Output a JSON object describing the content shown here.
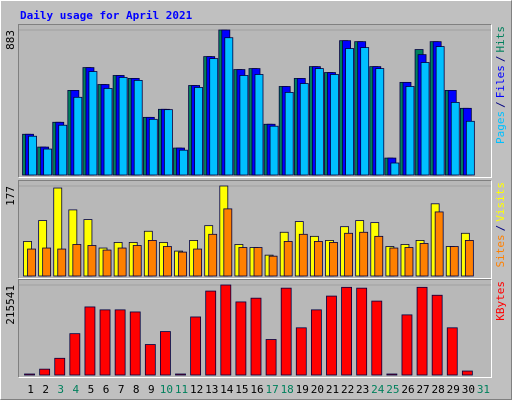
{
  "chart_data": {
    "type": "bar",
    "title": "Daily usage for April 2021",
    "categories": [
      1,
      2,
      3,
      4,
      5,
      6,
      7,
      8,
      9,
      10,
      11,
      12,
      13,
      14,
      15,
      16,
      17,
      18,
      19,
      20,
      21,
      22,
      23,
      24,
      25,
      26,
      27,
      28,
      29,
      30,
      31
    ],
    "category_colors": [
      "#000000",
      "#000000",
      "#00805c",
      "#00805c",
      "#000000",
      "#000000",
      "#000000",
      "#000000",
      "#000000",
      "#00805c",
      "#00805c",
      "#000000",
      "#000000",
      "#000000",
      "#000000",
      "#000000",
      "#00805c",
      "#00805c",
      "#000000",
      "#000000",
      "#000000",
      "#000000",
      "#000000",
      "#00805c",
      "#00805c",
      "#000000",
      "#000000",
      "#000000",
      "#000000",
      "#000000",
      "#00805c"
    ],
    "separator": "/",
    "panels": [
      {
        "ylim": [
          0,
          883
        ],
        "yticks": [
          883
        ],
        "series": [
          {
            "name": "Hits",
            "color": "#00805c",
            "values": [
              248,
              170,
              321,
              515,
              654,
              551,
              606,
              588,
              351,
              400,
              164,
              545,
              721,
              883,
              642,
              648,
              309,
              539,
              588,
              660,
              624,
              818,
              812,
              660,
              103,
              564,
              764,
              812,
              515,
              406,
              0
            ]
          },
          {
            "name": "Files",
            "color": "#0000ff",
            "values": [
              248,
              170,
              321,
              515,
              654,
              551,
              606,
              588,
              351,
              400,
              164,
              545,
              721,
              883,
              642,
              648,
              309,
              539,
              588,
              660,
              624,
              818,
              812,
              660,
              103,
              564,
              733,
              812,
              515,
              406,
              0
            ]
          },
          {
            "name": "Pages",
            "color": "#00c0ff",
            "values": [
              236,
              158,
              303,
              473,
              630,
              527,
              594,
              576,
              339,
              398,
              151,
              533,
              709,
              836,
              606,
              612,
              297,
              503,
              557,
              648,
              612,
              770,
              776,
              648,
              73,
              539,
              685,
              782,
              442,
              327,
              0
            ]
          }
        ]
      },
      {
        "ylim": [
          0,
          177
        ],
        "yticks": [
          177
        ],
        "series": [
          {
            "name": "Visits",
            "color": "#ffff00",
            "values": [
              68,
              109,
              173,
              130,
              111,
              55,
              66,
              66,
              88,
              66,
              49,
              70,
              99,
              177,
              62,
              56,
              41,
              86,
              107,
              78,
              70,
              97,
              109,
              105,
              58,
              62,
              70,
              142,
              58,
              84,
              0
            ]
          },
          {
            "name": "Sites",
            "color": "#ff8000",
            "values": [
              53,
              55,
              53,
              62,
              60,
              51,
              55,
              60,
              70,
              58,
              47,
              53,
              82,
              132,
              56,
              56,
              39,
              68,
              82,
              68,
              66,
              84,
              86,
              78,
              55,
              56,
              64,
              126,
              58,
              70,
              0
            ]
          }
        ]
      },
      {
        "ylim": [
          0,
          215541
        ],
        "yticks": [
          215541
        ],
        "series": [
          {
            "name": "KBytes",
            "color": "#ff0000",
            "values": [
              2400,
              14000,
              40000,
              99000,
              163000,
              156000,
              156000,
              151000,
              73000,
              104000,
              2400,
              139000,
              201000,
              215541,
              175000,
              184000,
              85000,
              208000,
              113000,
              156000,
              189000,
              210000,
              208000,
              177000,
              2400,
              144000,
              210000,
              191000,
              113000,
              9500,
              0
            ]
          }
        ]
      }
    ]
  }
}
